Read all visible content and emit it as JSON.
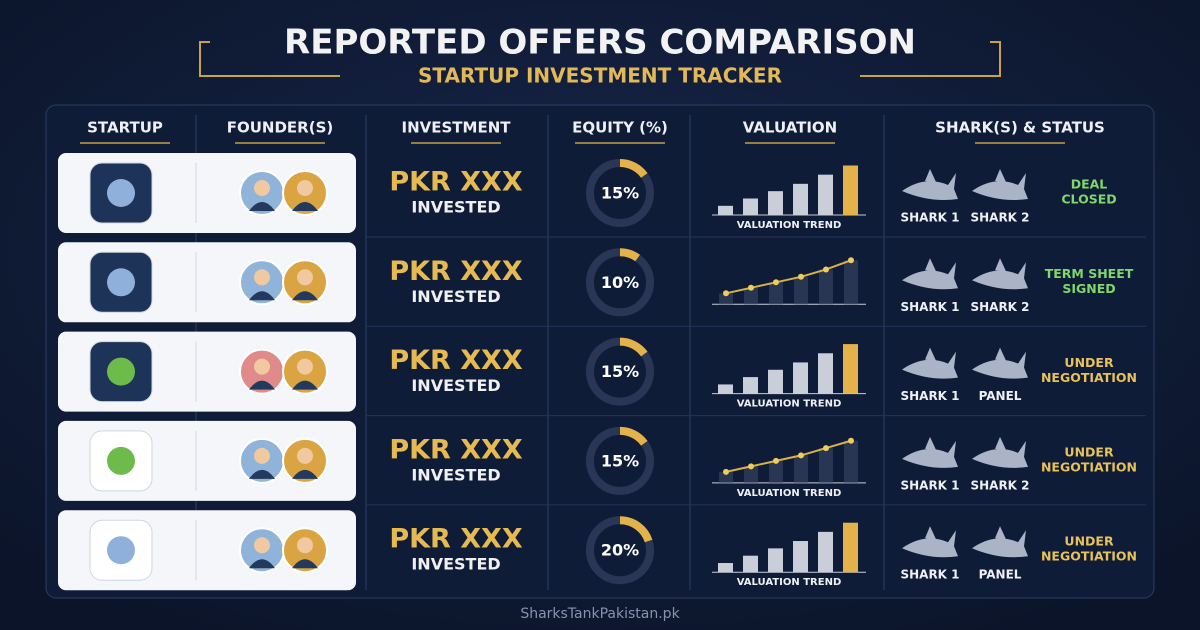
{
  "header": {
    "title": "REPORTED OFFERS COMPARISON",
    "subtitle": "STARTUP INVESTMENT TRACKER"
  },
  "table": {
    "headers": [
      "STARTUP",
      "FOUNDER(S)",
      "INVESTMENT",
      "EQUITY (%)",
      "VALUATION",
      "SHARK(S) & STATUS"
    ],
    "rows": [
      {
        "investment": "PKR XXX",
        "invested": "INVESTED",
        "equity": {
          "value": 15,
          "label": "15%"
        },
        "trend": {
          "type": "bar",
          "values": [
            10,
            18,
            26,
            34,
            44,
            54
          ],
          "ylim": [
            0,
            60
          ],
          "caption": "VALUATION TREND"
        },
        "sharks": [
          "SHARK 1",
          "SHARK 2"
        ],
        "status": [
          "DEAL",
          "CLOSED"
        ],
        "status_color": "#7fd86a"
      },
      {
        "investment": "PKR XXX",
        "invested": "INVESTED",
        "equity": {
          "value": 10,
          "label": "10%"
        },
        "trend": {
          "type": "line",
          "values": [
            12,
            18,
            24,
            30,
            38,
            48
          ],
          "ylim": [
            0,
            60
          ]
        },
        "sharks": [
          "SHARK 1",
          "SHARK 2"
        ],
        "status": [
          "TERM SHEET",
          "SIGNED"
        ],
        "status_color": "#7fd86a"
      },
      {
        "investment": "PKR XXX",
        "invested": "INVESTED",
        "equity": {
          "value": 15,
          "label": "15%"
        },
        "trend": {
          "type": "bar",
          "values": [
            10,
            18,
            26,
            34,
            44,
            54
          ],
          "ylim": [
            0,
            60
          ],
          "caption": "VALUATION TREND"
        },
        "sharks": [
          "SHARK 1",
          "PANEL"
        ],
        "status": [
          "UNDER",
          "NEGOTIATION"
        ],
        "status_color": "#e8c15a"
      },
      {
        "investment": "PKR XXX",
        "invested": "INVESTED",
        "equity": {
          "value": 15,
          "label": "15%"
        },
        "trend": {
          "type": "line",
          "values": [
            12,
            18,
            24,
            30,
            38,
            46
          ],
          "ylim": [
            0,
            60
          ],
          "caption": "VALUATION TREND"
        },
        "sharks": [
          "SHARK 1",
          "SHARK 2"
        ],
        "status": [
          "UNDER",
          "NEGOTIATION"
        ],
        "status_color": "#e8c15a"
      },
      {
        "investment": "PKR XXX",
        "invested": "INVESTED",
        "equity": {
          "value": 20,
          "label": "20%"
        },
        "trend": {
          "type": "bar",
          "values": [
            10,
            18,
            26,
            34,
            44,
            54
          ],
          "ylim": [
            0,
            60
          ],
          "caption": "VALUATION TREND"
        },
        "sharks": [
          "SHARK 1",
          "PANEL"
        ],
        "status": [
          "UNDER",
          "NEGOTIATION"
        ],
        "status_color": "#e8c15a"
      }
    ]
  },
  "footer": "SharksTankPakistan.pk"
}
